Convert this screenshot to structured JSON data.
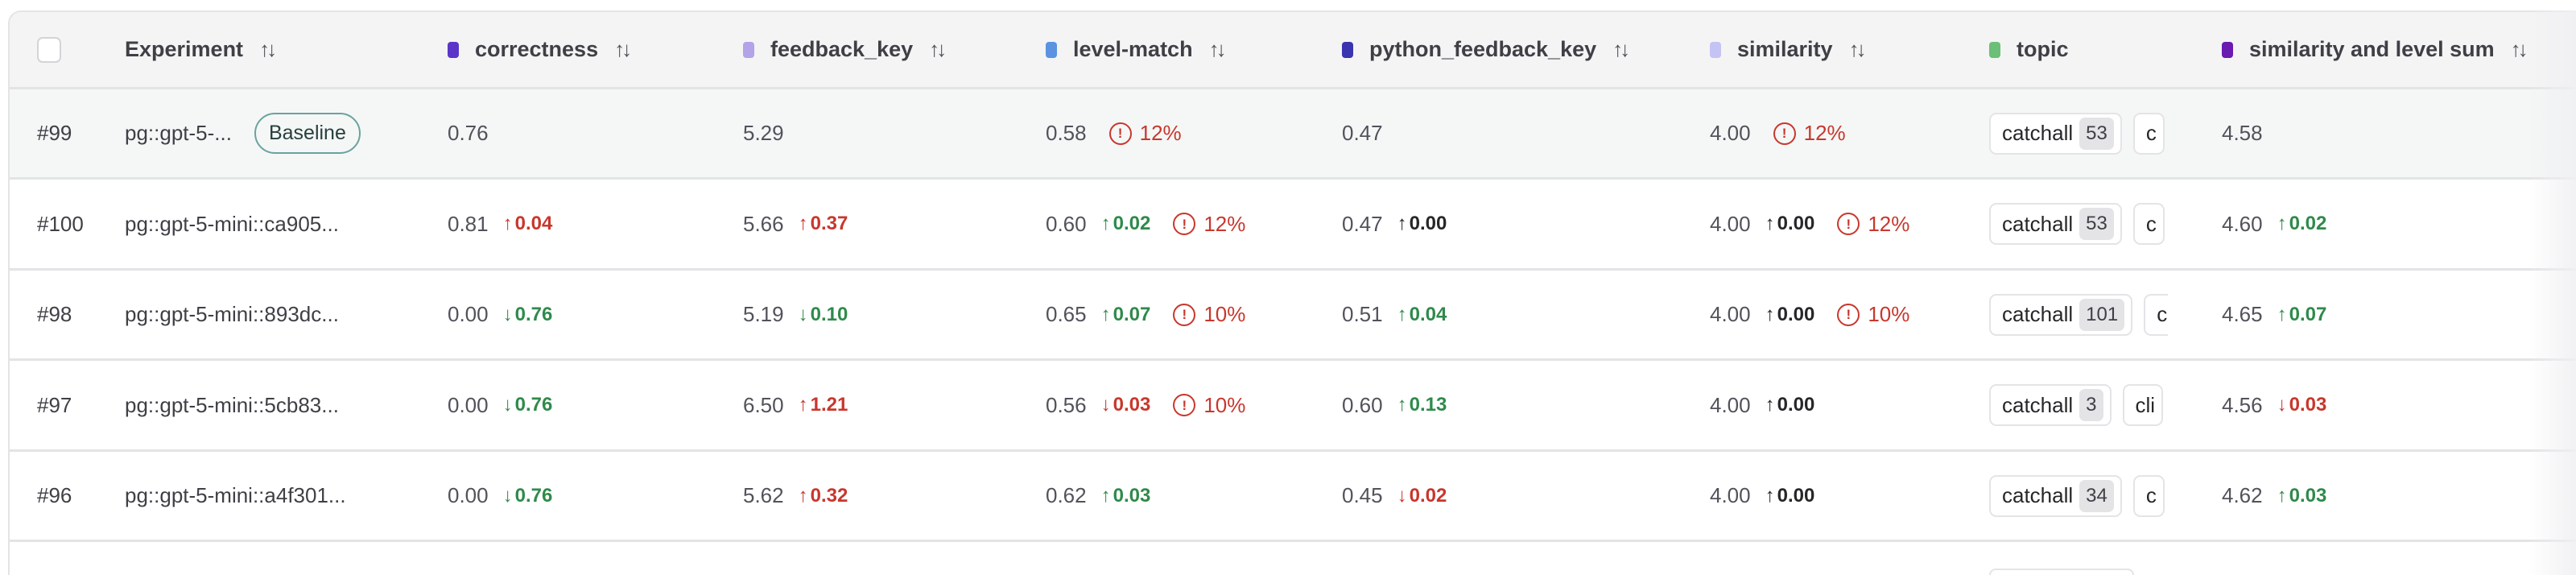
{
  "header": {
    "select_all": false,
    "columns": [
      {
        "key": "experiment",
        "label": "Experiment",
        "sortable": true
      },
      {
        "key": "correctness",
        "label": "correctness",
        "color": "#5b35c8",
        "sortable": true
      },
      {
        "key": "feedback_key",
        "label": "feedback_key",
        "color": "#b3a3e8",
        "sortable": true
      },
      {
        "key": "level_match",
        "label": "level-match",
        "color": "#5b93e0",
        "sortable": true
      },
      {
        "key": "python_feedback_key",
        "label": "python_feedback_key",
        "color": "#3a34b0",
        "sortable": true
      },
      {
        "key": "similarity",
        "label": "similarity",
        "color": "#c5c3f3",
        "sortable": true
      },
      {
        "key": "topic",
        "label": "topic",
        "color": "#6cbf76",
        "sortable": false
      },
      {
        "key": "sum",
        "label": "similarity and level sum",
        "color": "#6a1bb0",
        "sortable": true
      }
    ],
    "sort_icon": "sort-arrows-icon"
  },
  "tone_colors": {
    "good": "#2f8a4b",
    "bad": "#c8372d",
    "neutral": "#27272a"
  },
  "rows": [
    {
      "id": "#99",
      "experiment": "pg::gpt-5-...",
      "badge": "Baseline",
      "correctness": {
        "value": "0.76"
      },
      "feedback_key": {
        "value": "5.29"
      },
      "level_match": {
        "value": "0.58",
        "warning": "12%"
      },
      "python_feedback_key": {
        "value": "0.47"
      },
      "similarity": {
        "value": "4.00",
        "warning": "12%"
      },
      "topic": [
        {
          "label": "catchall",
          "count": "53"
        },
        {
          "label": "c"
        }
      ],
      "sum": {
        "value": "4.58"
      }
    },
    {
      "id": "#100",
      "experiment": "pg::gpt-5-mini::ca905...",
      "correctness": {
        "value": "0.81",
        "delta": {
          "dir": "up",
          "amount": "0.04",
          "tone": "bad"
        }
      },
      "feedback_key": {
        "value": "5.66",
        "delta": {
          "dir": "up",
          "amount": "0.37",
          "tone": "bad"
        }
      },
      "level_match": {
        "value": "0.60",
        "delta": {
          "dir": "up",
          "amount": "0.02",
          "tone": "good"
        },
        "warning": "12%"
      },
      "python_feedback_key": {
        "value": "0.47",
        "delta": {
          "dir": "up",
          "amount": "0.00",
          "tone": "neutral"
        }
      },
      "similarity": {
        "value": "4.00",
        "delta": {
          "dir": "up",
          "amount": "0.00",
          "tone": "neutral"
        },
        "warning": "12%"
      },
      "topic": [
        {
          "label": "catchall",
          "count": "53"
        },
        {
          "label": "c"
        }
      ],
      "sum": {
        "value": "4.60",
        "delta": {
          "dir": "up",
          "amount": "0.02",
          "tone": "good"
        }
      }
    },
    {
      "id": "#98",
      "experiment": "pg::gpt-5-mini::893dc...",
      "correctness": {
        "value": "0.00",
        "delta": {
          "dir": "down",
          "amount": "0.76",
          "tone": "good"
        }
      },
      "feedback_key": {
        "value": "5.19",
        "delta": {
          "dir": "down",
          "amount": "0.10",
          "tone": "good"
        }
      },
      "level_match": {
        "value": "0.65",
        "delta": {
          "dir": "up",
          "amount": "0.07",
          "tone": "good"
        },
        "warning": "10%"
      },
      "python_feedback_key": {
        "value": "0.51",
        "delta": {
          "dir": "up",
          "amount": "0.04",
          "tone": "good"
        }
      },
      "similarity": {
        "value": "4.00",
        "delta": {
          "dir": "up",
          "amount": "0.00",
          "tone": "neutral"
        },
        "warning": "10%"
      },
      "topic": [
        {
          "label": "catchall",
          "count": "101"
        },
        {
          "label": "c"
        }
      ],
      "sum": {
        "value": "4.65",
        "delta": {
          "dir": "up",
          "amount": "0.07",
          "tone": "good"
        }
      }
    },
    {
      "id": "#97",
      "experiment": "pg::gpt-5-mini::5cb83...",
      "correctness": {
        "value": "0.00",
        "delta": {
          "dir": "down",
          "amount": "0.76",
          "tone": "good"
        }
      },
      "feedback_key": {
        "value": "6.50",
        "delta": {
          "dir": "up",
          "amount": "1.21",
          "tone": "bad"
        }
      },
      "level_match": {
        "value": "0.56",
        "delta": {
          "dir": "down",
          "amount": "0.03",
          "tone": "bad"
        },
        "warning": "10%"
      },
      "python_feedback_key": {
        "value": "0.60",
        "delta": {
          "dir": "up",
          "amount": "0.13",
          "tone": "good"
        }
      },
      "similarity": {
        "value": "4.00",
        "delta": {
          "dir": "up",
          "amount": "0.00",
          "tone": "neutral"
        }
      },
      "topic": [
        {
          "label": "catchall",
          "count": "3"
        },
        {
          "label": "cli"
        }
      ],
      "sum": {
        "value": "4.56",
        "delta": {
          "dir": "down",
          "amount": "0.03",
          "tone": "bad"
        }
      }
    },
    {
      "id": "#96",
      "experiment": "pg::gpt-5-mini::a4f301...",
      "correctness": {
        "value": "0.00",
        "delta": {
          "dir": "down",
          "amount": "0.76",
          "tone": "good"
        }
      },
      "feedback_key": {
        "value": "5.62",
        "delta": {
          "dir": "up",
          "amount": "0.32",
          "tone": "bad"
        }
      },
      "level_match": {
        "value": "0.62",
        "delta": {
          "dir": "up",
          "amount": "0.03",
          "tone": "good"
        }
      },
      "python_feedback_key": {
        "value": "0.45",
        "delta": {
          "dir": "down",
          "amount": "0.02",
          "tone": "bad"
        }
      },
      "similarity": {
        "value": "4.00",
        "delta": {
          "dir": "up",
          "amount": "0.00",
          "tone": "neutral"
        }
      },
      "topic": [
        {
          "label": "catchall",
          "count": "34"
        },
        {
          "label": "c"
        }
      ],
      "sum": {
        "value": "4.62",
        "delta": {
          "dir": "up",
          "amount": "0.03",
          "tone": "good"
        }
      }
    }
  ]
}
